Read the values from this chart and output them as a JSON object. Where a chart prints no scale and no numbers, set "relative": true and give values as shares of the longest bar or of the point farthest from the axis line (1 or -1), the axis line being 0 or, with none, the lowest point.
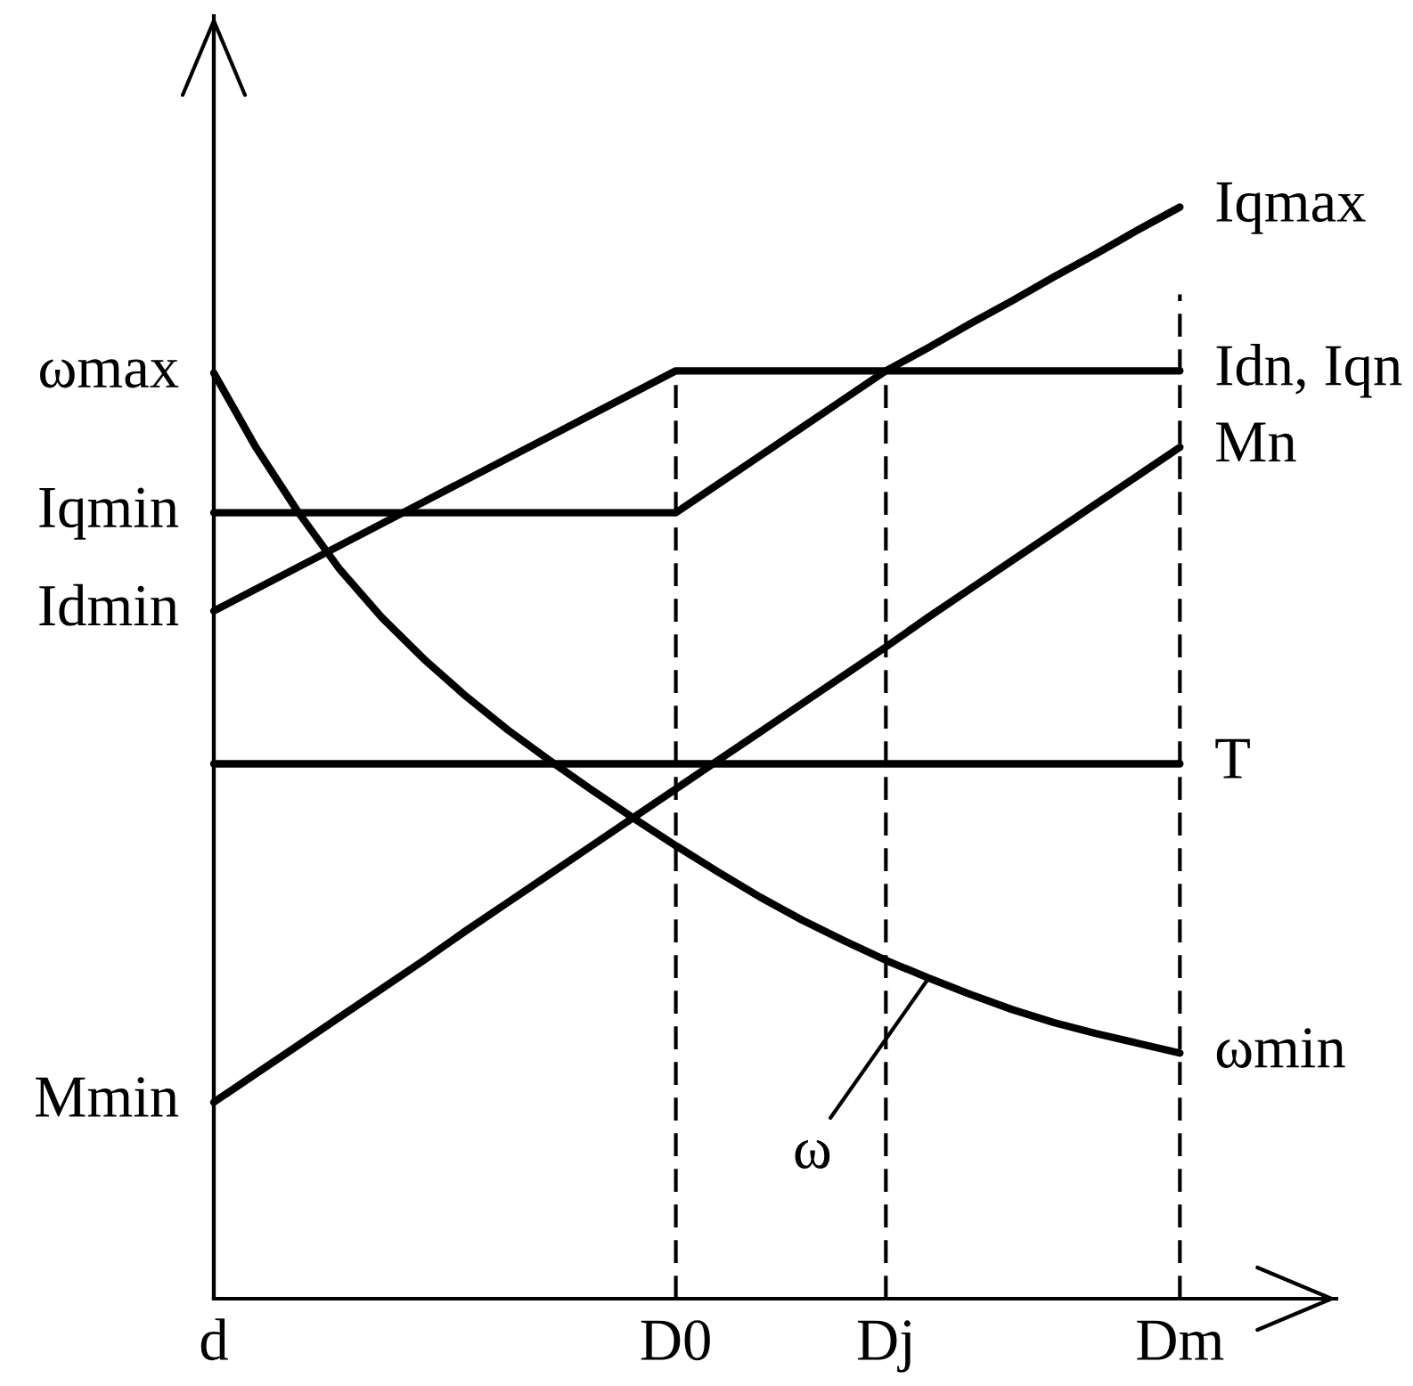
{
  "chart_data": {
    "type": "line",
    "relative": true,
    "tick_labels": "x",
    "categories": [
      "d",
      null,
      null,
      null,
      null,
      null,
      null,
      null,
      null,
      null,
      null,
      "D0",
      null,
      null,
      null,
      null,
      "Dj",
      null,
      null,
      null,
      null,
      null,
      null,
      "Dm"
    ],
    "series": [
      {
        "name": "Iqmax",
        "color": "#000000",
        "values": [
          0.72,
          0.72,
          0.72,
          0.72,
          0.72,
          0.72,
          0.72,
          0.72,
          0.72,
          0.72,
          0.72,
          0.72,
          0.746,
          0.772,
          0.798,
          0.824,
          0.85,
          0.871,
          0.893,
          0.914,
          0.936,
          0.957,
          0.979,
          1
        ]
      },
      {
        "name": "Idn, Iqn",
        "color": "#000000",
        "values": [
          0.63,
          0.65,
          0.67,
          0.69,
          0.71,
          0.73,
          0.75,
          0.77,
          0.79,
          0.81,
          0.83,
          0.85,
          0.85,
          0.85,
          0.85,
          0.85,
          0.85,
          0.85,
          0.85,
          0.85,
          0.85,
          0.85,
          0.85,
          0.85
        ]
      },
      {
        "name": "Mn",
        "color": "#000000",
        "values": [
          0.18,
          0.206,
          0.232,
          0.258,
          0.284,
          0.31,
          0.337,
          0.363,
          0.389,
          0.415,
          0.441,
          0.467,
          0.493,
          0.519,
          0.545,
          0.571,
          0.597,
          0.624,
          0.65,
          0.676,
          0.702,
          0.728,
          0.754,
          0.78
        ]
      },
      {
        "name": "T",
        "color": "#000000",
        "values": [
          0.49,
          0.49,
          0.49,
          0.49,
          0.49,
          0.49,
          0.49,
          0.49,
          0.49,
          0.49,
          0.49,
          0.49,
          0.49,
          0.49,
          0.49,
          0.49,
          0.49,
          0.49,
          0.49,
          0.49,
          0.49,
          0.49,
          0.49,
          0.49
        ]
      },
      {
        "name": "ω",
        "color": "#000000",
        "values": [
          0.848,
          0.78,
          0.721,
          0.668,
          0.624,
          0.586,
          0.552,
          0.521,
          0.493,
          0.466,
          0.44,
          0.415,
          0.391,
          0.368,
          0.347,
          0.328,
          0.31,
          0.294,
          0.279,
          0.265,
          0.253,
          0.243,
          0.234,
          0.225
        ]
      },
      {
        "color": "#000000",
        "line_style": "dashed",
        "x": [
          "D0",
          "D0"
        ],
        "values": [
          0,
          0.85
        ]
      },
      {
        "color": "#000000",
        "line_style": "dashed",
        "x": [
          "Dj",
          "Dj"
        ],
        "values": [
          0,
          0.85
        ]
      },
      {
        "color": "#000000",
        "line_style": "dashed",
        "x": [
          "Dm",
          "Dm"
        ],
        "values": [
          0,
          0.92
        ]
      }
    ],
    "annotations": [
      {
        "text": "ωmax",
        "x": "d",
        "y": 0.848
      },
      {
        "text": "Iqmin",
        "x": "d",
        "y": 0.72
      },
      {
        "text": "Idmin",
        "x": "d",
        "y": 0.63
      },
      {
        "text": "Mmin",
        "x": "d",
        "y": 0.18
      },
      {
        "text": "ωmin",
        "x": "Dm",
        "y": 0.225
      }
    ]
  }
}
